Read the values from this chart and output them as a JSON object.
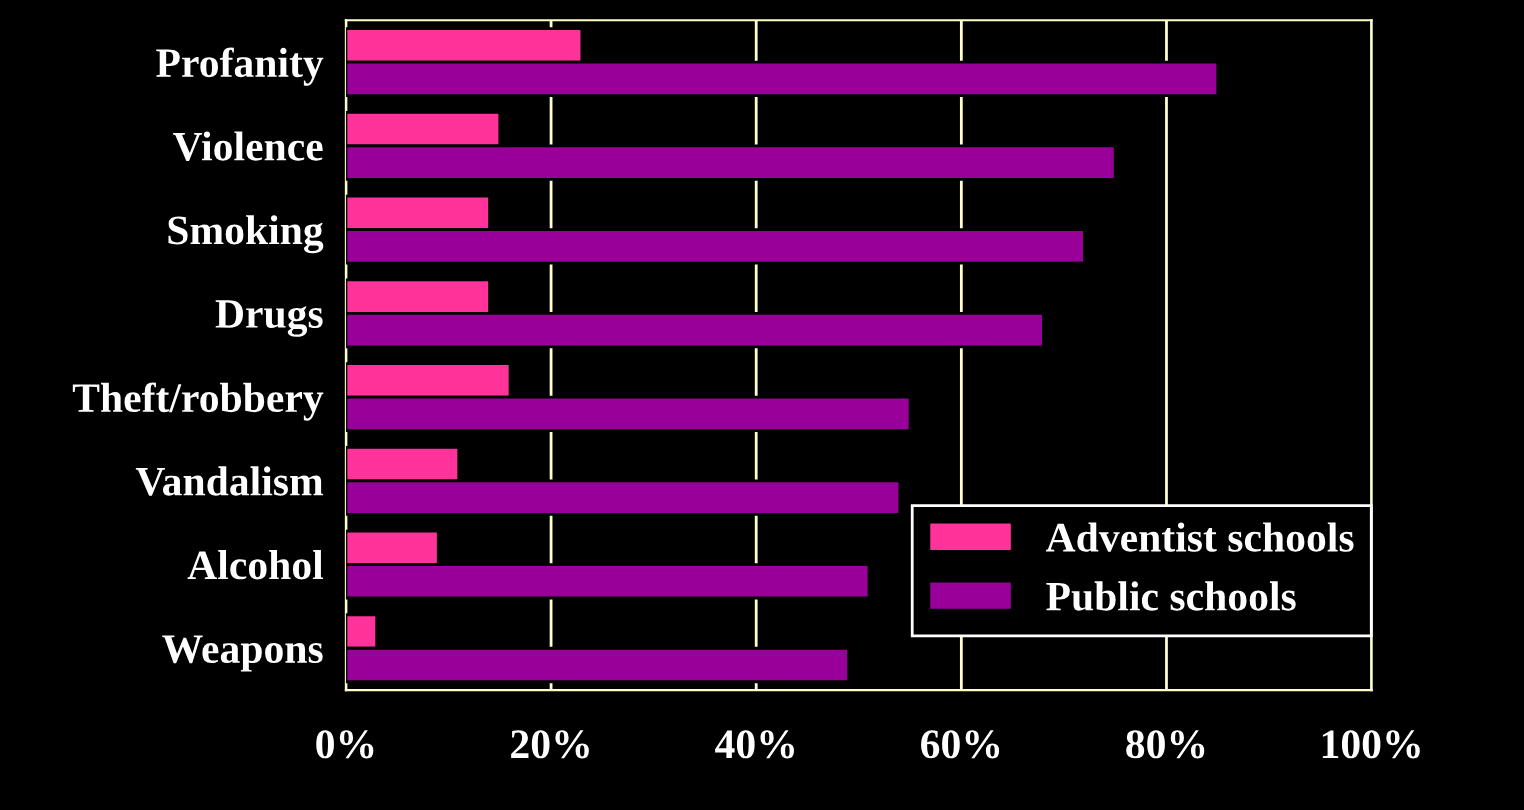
{
  "chart_data": {
    "type": "bar",
    "orientation": "horizontal",
    "categories": [
      "Profanity",
      "Violence",
      "Smoking",
      "Drugs",
      "Theft/robbery",
      "Vandalism",
      "Alcohol",
      "Weapons"
    ],
    "series": [
      {
        "name": "Adventist schools",
        "color": "#ff3399",
        "values": [
          23,
          15,
          14,
          14,
          16,
          11,
          9,
          3
        ]
      },
      {
        "name": "Public schools",
        "color": "#990099",
        "values": [
          85,
          75,
          72,
          68,
          55,
          54,
          51,
          49
        ]
      }
    ],
    "xlim": [
      0,
      100
    ],
    "xticks": [
      {
        "value": 0,
        "label": "0%"
      },
      {
        "value": 20,
        "label": "20%"
      },
      {
        "value": 40,
        "label": "40%"
      },
      {
        "value": 60,
        "label": "60%"
      },
      {
        "value": 80,
        "label": "80%"
      },
      {
        "value": 100,
        "label": "100%"
      }
    ],
    "grid": "x",
    "legend": "bottom right"
  }
}
